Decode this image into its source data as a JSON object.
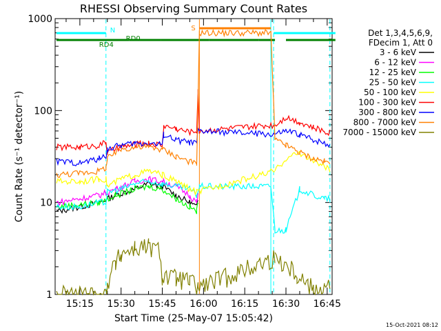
{
  "chart_data": {
    "type": "line",
    "title": "RHESSI Observing Summary Count Rates",
    "xlabel": "Start Time (25-May-07 15:05:42)",
    "ylabel": "Count Rate (s⁻¹ detector⁻¹)",
    "yscale": "log",
    "ylim": [
      1,
      1000
    ],
    "xlim_minutes": [
      15.1,
      16.78
    ],
    "x_tick_labels": [
      "15:15",
      "15:30",
      "15:45",
      "16:00",
      "16:15",
      "16:30",
      "16:45"
    ],
    "x_ticks_minutes_after_15h": [
      15,
      30,
      45,
      60,
      75,
      90,
      105
    ],
    "y_tick_labels": [
      "1",
      "10",
      "100",
      "1000"
    ],
    "y_ticks": [
      1,
      10,
      100,
      1000
    ],
    "legend_placement": "right",
    "legend_header": [
      "Det 1,3,4,5,6,9,",
      "FDecim 1, Att 0"
    ],
    "timestamp": "15-Oct-2021 08:12",
    "flags": [
      {
        "label": "N",
        "color": "#00ffff",
        "segments": [
          [
            6.5,
            24.5
          ],
          [
            85.5,
            108
          ]
        ]
      },
      {
        "label": "S",
        "color": "#ff8000",
        "segments": [
          [
            58.5,
            84.5
          ]
        ]
      },
      {
        "label": "RD0",
        "color": "#008000",
        "segments": [
          [
            33,
            44.5
          ],
          [
            62,
            80
          ]
        ]
      },
      {
        "label": "RD4",
        "color": "#008000",
        "segments": [
          [
            6.5,
            33
          ],
          [
            44.5,
            62
          ],
          [
            80,
            86
          ],
          [
            90,
            108
          ]
        ]
      }
    ],
    "vlines": [
      {
        "x": 24.5,
        "color": "#00ffff",
        "style": "dashed"
      },
      {
        "x": 58.5,
        "color": "#ff8000",
        "style": "solid"
      },
      {
        "x": 84.5,
        "color": "#00ffff",
        "style": "solid"
      },
      {
        "x": 85.5,
        "color": "#00ffff",
        "style": "dashed"
      },
      {
        "x": 106,
        "color": "#00ffff",
        "style": "dashed"
      }
    ],
    "series": [
      {
        "name": "3 - 6 keV",
        "color": "#000000",
        "x": [
          6.5,
          15,
          22,
          28,
          35,
          40,
          45,
          50,
          55,
          57.5,
          58
        ],
        "y": [
          8,
          9,
          10,
          12,
          14,
          16,
          15,
          12,
          10,
          9,
          11
        ]
      },
      {
        "name": "6 - 12 keV",
        "color": "#ff00ff",
        "x": [
          6.5,
          15,
          22,
          28,
          35,
          40,
          45,
          50,
          55,
          57.5,
          58
        ],
        "y": [
          10,
          11,
          12,
          14,
          17,
          18,
          17,
          15,
          12,
          10,
          12
        ]
      },
      {
        "name": "12 - 25 keV",
        "color": "#00ff00",
        "x": [
          6.5,
          15,
          22,
          28,
          35,
          40,
          45,
          50,
          55,
          57.5,
          58
        ],
        "y": [
          9,
          9.5,
          10,
          12,
          14,
          15,
          14,
          11,
          9,
          8,
          10
        ]
      },
      {
        "name": "25 - 50 keV",
        "color": "#00ffff",
        "x": [
          6.5,
          15,
          22,
          24.5,
          25,
          30,
          35,
          40,
          45,
          50,
          55,
          57.5,
          58.5,
          84.5,
          86,
          90,
          95,
          100,
          104,
          106
        ],
        "y": [
          9,
          9,
          10,
          10,
          13,
          14,
          16,
          17,
          16,
          15,
          14,
          12,
          15,
          15,
          5,
          5,
          14,
          12,
          11,
          11
        ]
      },
      {
        "name": "50 - 100 keV",
        "color": "#ffff00",
        "x": [
          6.5,
          15,
          22,
          24.5,
          25,
          30,
          35,
          40,
          45,
          50,
          55,
          57.5,
          86,
          90,
          95,
          100,
          104,
          106
        ],
        "y": [
          17,
          17,
          18,
          18,
          15,
          18,
          20,
          22,
          20,
          17,
          14,
          13,
          22,
          30,
          35,
          28,
          25,
          22
        ]
      },
      {
        "name": "100 - 300 keV",
        "color": "#ff0000",
        "x": [
          6.5,
          15,
          22,
          24.5,
          25,
          30,
          35,
          40,
          45,
          45.5,
          50,
          55,
          57.5,
          58,
          58.5,
          86,
          90,
          95,
          100,
          104,
          106
        ],
        "y": [
          40,
          40,
          42,
          45,
          35,
          40,
          43,
          44,
          42,
          68,
          64,
          58,
          60,
          160,
          60,
          70,
          85,
          75,
          65,
          60,
          58
        ]
      },
      {
        "name": "300 - 800 keV",
        "color": "#0000ff",
        "x": [
          6.5,
          15,
          22,
          24.5,
          25,
          30,
          35,
          40,
          45,
          45.5,
          50,
          55,
          57.5,
          58,
          86,
          90,
          95,
          100,
          104,
          106
        ],
        "y": [
          28,
          27,
          30,
          32,
          38,
          42,
          44,
          44,
          43,
          55,
          48,
          45,
          44,
          60,
          55,
          60,
          55,
          48,
          45,
          42
        ]
      },
      {
        "name": "800 - 7000 keV",
        "color": "#ff8000",
        "x": [
          6.5,
          15,
          22,
          24.5,
          25,
          30,
          35,
          40,
          45,
          50,
          55,
          57.5,
          58.5,
          84.5,
          86,
          90,
          95,
          100,
          104,
          106
        ],
        "y": [
          20,
          21,
          22,
          24,
          30,
          38,
          40,
          40,
          38,
          32,
          28,
          26,
          700,
          700,
          48,
          42,
          35,
          30,
          28,
          26
        ]
      },
      {
        "name": "7000 - 15000 keV",
        "color": "#808000",
        "x": [
          6.5,
          24.5,
          25,
          28,
          30,
          35,
          40,
          44,
          45,
          50,
          55,
          58,
          86,
          90,
          94,
          98,
          100,
          104,
          106
        ],
        "y": [
          1,
          1,
          1.4,
          2.2,
          2.8,
          3.2,
          3.3,
          3,
          1.6,
          1.5,
          1.4,
          1.2,
          2.5,
          2.2,
          1.7,
          1.3,
          1.2,
          1.2,
          1.2
        ]
      }
    ]
  }
}
